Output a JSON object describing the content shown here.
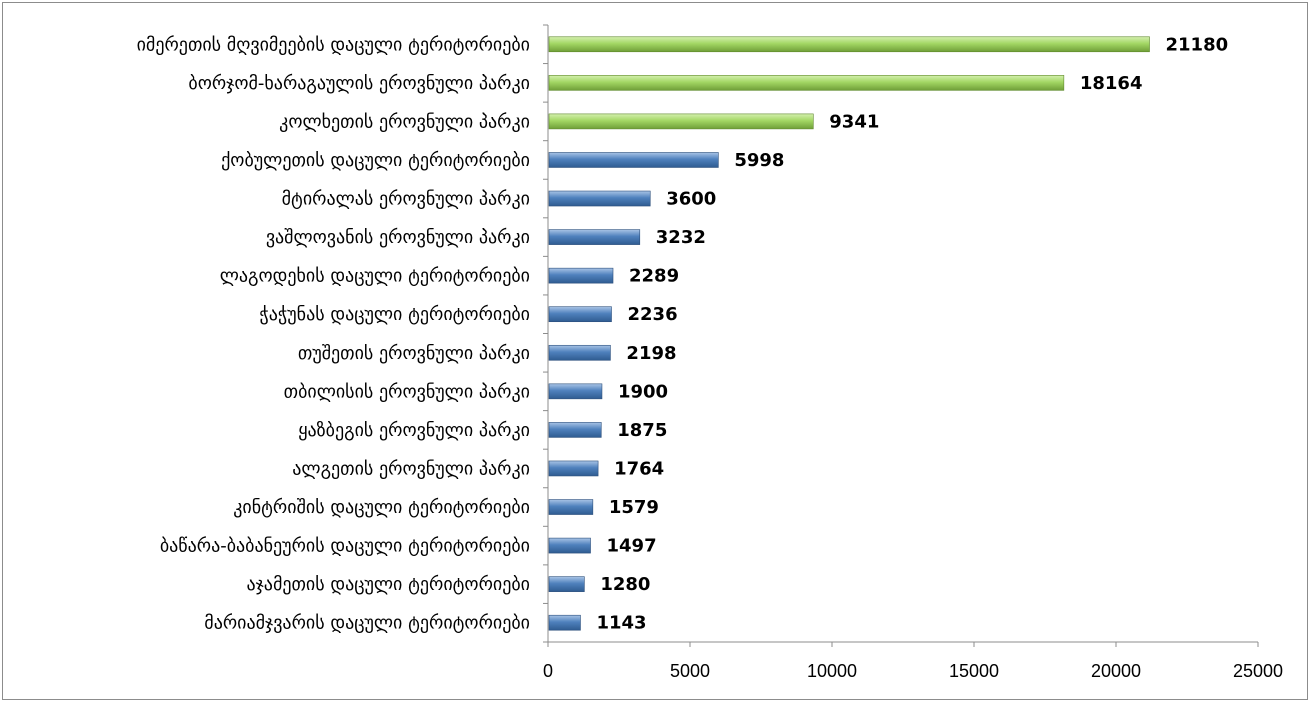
{
  "chart_data": {
    "type": "bar",
    "orientation": "horizontal",
    "title": "",
    "xlabel": "",
    "ylabel": "",
    "categories": [
      "იმერეთის მღვიმეების დაცული ტერიტორიები",
      "ბორჯომ-ხარაგაულის ეროვნული პარკი",
      "კოლხეთის ეროვნული პარკი",
      "ქობულეთის დაცული ტერიტორიები",
      "მტირალას ეროვნული პარკი",
      "ვაშლოვანის ეროვნული პარკი",
      "ლაგოდეხის დაცული ტერიტორიები",
      "ჭაჭუნას დაცული ტერიტორიები",
      "თუშეთის ეროვნული პარკი",
      "თბილისის ეროვნული პარკი",
      "ყაზბეგის ეროვნული პარკი",
      "ალგეთის ეროვნული პარკი",
      "კინტრიშის დაცული ტერიტორიები",
      "ბაწარა-ბაბანეურის დაცული ტერიტორიები",
      "აჯამეთის დაცული ტერიტორიები",
      "მარიამჯვარის დაცული ტერიტორიები"
    ],
    "values": [
      21180,
      18164,
      9341,
      5998,
      3600,
      3232,
      2289,
      2236,
      2198,
      1900,
      1875,
      1764,
      1579,
      1497,
      1280,
      1143
    ],
    "value_labels": [
      "21180",
      "18164",
      "9341",
      "5998",
      "3600",
      "3232",
      "2289",
      "2236",
      "2198",
      "1900",
      "1875",
      "1764",
      "1579",
      "1497",
      "1280",
      "1143"
    ],
    "bar_colors": [
      "#9bd35a",
      "#9bd35a",
      "#9bd35a",
      "#4f81bd",
      "#4f81bd",
      "#4f81bd",
      "#4f81bd",
      "#4f81bd",
      "#4f81bd",
      "#4f81bd",
      "#4f81bd",
      "#4f81bd",
      "#4f81bd",
      "#4f81bd",
      "#4f81bd",
      "#4f81bd"
    ],
    "xlim": [
      0,
      25000
    ],
    "x_ticks": [
      0,
      5000,
      10000,
      15000,
      20000,
      25000
    ],
    "x_tick_labels": [
      "0",
      "5000",
      "10000",
      "15000",
      "20000",
      "25000"
    ],
    "grid": false,
    "legend": "none"
  }
}
